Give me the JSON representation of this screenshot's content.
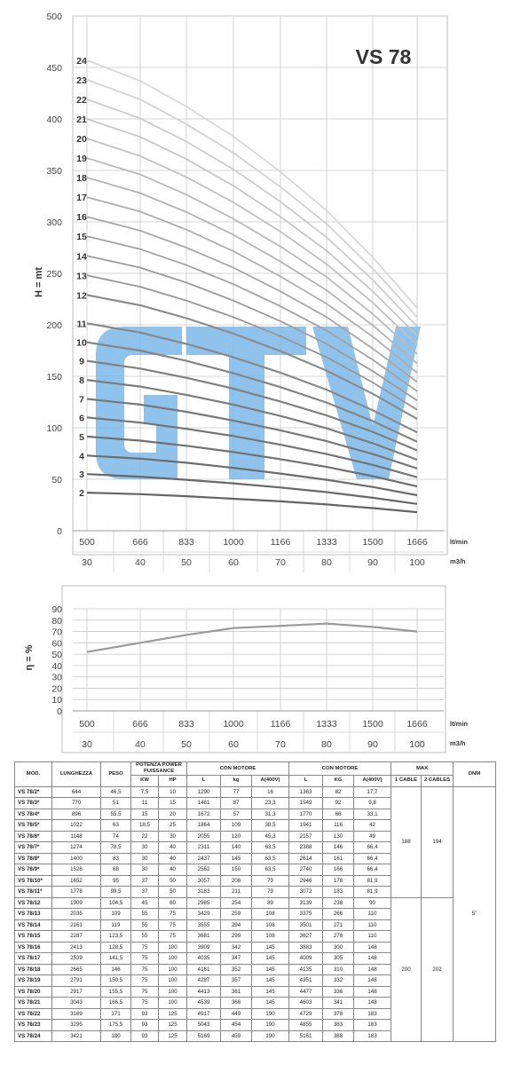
{
  "chart_data": [
    {
      "type": "line",
      "title": "VS 78",
      "ylabel": "H = mt",
      "x_units": [
        "lt/min",
        "m3/h"
      ],
      "x_ltmin": [
        "500",
        "666",
        "833",
        "1000",
        "1166",
        "1333",
        "1500",
        "1666"
      ],
      "x_m3h": [
        "30",
        "40",
        "50",
        "60",
        "70",
        "80",
        "90",
        "100"
      ],
      "ylim": [
        0,
        500
      ],
      "yticks": [
        "0",
        "50",
        "100",
        "150",
        "200",
        "250",
        "300",
        "350",
        "400",
        "450",
        "500"
      ],
      "grid": true,
      "x": [
        500,
        666,
        833,
        1000,
        1166,
        1333,
        1500,
        1666
      ],
      "series": [
        {
          "name": "2",
          "values": [
            37,
            35.5,
            33.5,
            31,
            28.5,
            25.5,
            22,
            18
          ]
        },
        {
          "name": "3",
          "values": [
            55,
            52.5,
            49.5,
            46,
            42,
            37.5,
            32,
            26
          ]
        },
        {
          "name": "4",
          "values": [
            73,
            70,
            66,
            61,
            55.5,
            49.5,
            42.5,
            34.5
          ]
        },
        {
          "name": "5",
          "values": [
            91.5,
            87.5,
            82.5,
            76.5,
            69.5,
            62,
            53,
            43
          ]
        },
        {
          "name": "6",
          "values": [
            110,
            105,
            99,
            92,
            83.5,
            74.5,
            64,
            52
          ]
        },
        {
          "name": "7",
          "values": [
            128,
            122.5,
            115.5,
            107,
            97.5,
            87,
            74.5,
            60.5
          ]
        },
        {
          "name": "8",
          "values": [
            146.5,
            140,
            132,
            122.5,
            111.5,
            99.5,
            85,
            69
          ]
        },
        {
          "name": "9",
          "values": [
            165,
            157.5,
            148.5,
            138,
            125.5,
            112,
            96,
            78
          ]
        },
        {
          "name": "10",
          "values": [
            183,
            175,
            165,
            153,
            139.5,
            124.5,
            106.5,
            86.5
          ]
        },
        {
          "name": "11",
          "values": [
            201.5,
            192.5,
            181.5,
            168.5,
            153.5,
            137,
            117,
            95.5
          ]
        },
        {
          "name": "12",
          "values": [
            229,
            219,
            206.5,
            191.5,
            174.5,
            155.5,
            133,
            108.5
          ]
        },
        {
          "name": "13",
          "values": [
            248,
            237,
            223.5,
            207.5,
            189,
            168.5,
            144,
            117.5
          ]
        },
        {
          "name": "14",
          "values": [
            267,
            255.5,
            241,
            223.5,
            203.5,
            181.5,
            155,
            126.5
          ]
        },
        {
          "name": "15",
          "values": [
            286,
            273.5,
            258,
            239.5,
            218,
            194.5,
            166,
            135.5
          ]
        },
        {
          "name": "16",
          "values": [
            305,
            291.5,
            275,
            255.5,
            232.5,
            207.5,
            177,
            144.5
          ]
        },
        {
          "name": "17",
          "values": [
            324,
            310,
            292.5,
            271.5,
            247,
            220.5,
            188.5,
            153.5
          ]
        },
        {
          "name": "18",
          "values": [
            343,
            328,
            309.5,
            287.5,
            261.5,
            233.5,
            199.5,
            162.5
          ]
        },
        {
          "name": "19",
          "values": [
            362,
            346,
            326.5,
            303,
            276,
            246.5,
            210.5,
            171.5
          ]
        },
        {
          "name": "20",
          "values": [
            381,
            364,
            343.5,
            319,
            290.5,
            259,
            221.5,
            180.5
          ]
        },
        {
          "name": "21",
          "values": [
            400,
            382.5,
            361,
            335,
            305,
            272,
            232.5,
            189.5
          ]
        },
        {
          "name": "22",
          "values": [
            419,
            400.5,
            378,
            351,
            319.5,
            285,
            243.5,
            198.5
          ]
        },
        {
          "name": "23",
          "values": [
            438,
            419,
            395,
            367,
            334,
            298,
            254.5,
            207.5
          ]
        },
        {
          "name": "24",
          "values": [
            457,
            437,
            412,
            383,
            348.5,
            311,
            265.5,
            216.5
          ]
        }
      ]
    },
    {
      "type": "line",
      "ylabel": "η = %",
      "x_units": [
        "lt/min",
        "m3/h"
      ],
      "x_ltmin": [
        "500",
        "666",
        "833",
        "1000",
        "1166",
        "1333",
        "1500",
        "1666"
      ],
      "x_m3h": [
        "30",
        "40",
        "50",
        "60",
        "70",
        "80",
        "90",
        "100"
      ],
      "ylim": [
        0,
        90
      ],
      "yticks": [
        "0",
        "10",
        "20",
        "30",
        "40",
        "50",
        "60",
        "70",
        "80",
        "90"
      ],
      "grid": true,
      "x": [
        500,
        666,
        833,
        1000,
        1166,
        1333,
        1500,
        1666
      ],
      "series": [
        {
          "values": [
            52,
            60,
            67,
            73,
            75,
            77,
            74,
            70
          ]
        }
      ]
    }
  ],
  "watermark": {
    "text": "GTV",
    "color": "#7db8e8"
  },
  "colors": {
    "grid": "#c8c8c8",
    "curve_light": "#cfcfcf",
    "curve_dark": "#6e6e6e",
    "efficiency": "#9a9a9a"
  },
  "table": {
    "headers": {
      "mod": "MOD.",
      "length": "LUNGHEZZA",
      "weight": "PESO",
      "power": "POTENZA POWER PUISSANCE",
      "power_kw": "KW",
      "power_hp": "HP",
      "motor_a": "CON MOTORE",
      "motor_a_l": "L",
      "motor_a_kg": "kg",
      "motor_a_amp": "A(400V)",
      "motor_b": "CON MOTORE",
      "motor_b_l": "L",
      "motor_b_kg": "KG",
      "motor_b_amp": "A(400V)",
      "max": "MAX",
      "max_1": "1 CABLE",
      "max_2": "2 CABLES",
      "dnm": "DNM"
    },
    "rows": [
      [
        "VS 78/2*",
        "644",
        "46,5",
        "7,5",
        "10",
        "1290",
        "77",
        "16",
        "1363",
        "82",
        "17,7"
      ],
      [
        "VS 78/3*",
        "770",
        "51",
        "11",
        "15",
        "1481",
        "87",
        "23,3",
        "1549",
        "92",
        "9,8"
      ],
      [
        "VS 78/4*",
        "896",
        "55,5",
        "15",
        "20",
        "1672",
        "57",
        "31,3",
        "1770",
        "66",
        "33,1"
      ],
      [
        "VS 78/5*",
        "1022",
        "63",
        "18,5",
        "25",
        "1864",
        "109",
        "38,5",
        "1941",
        "116",
        "42"
      ],
      [
        "VS 78/6*",
        "1148",
        "74",
        "22",
        "30",
        "2055",
        "120",
        "45,3",
        "2157",
        "130",
        "49"
      ],
      [
        "VS 78/7*",
        "1274",
        "78,5",
        "30",
        "40",
        "2311",
        "140",
        "63,5",
        "2388",
        "146",
        "66,4"
      ],
      [
        "VS 78/8*",
        "1400",
        "83",
        "30",
        "40",
        "2437",
        "145",
        "63,5",
        "2614",
        "161",
        "66,4"
      ],
      [
        "VS 78/9*",
        "1526",
        "88",
        "30",
        "40",
        "2562",
        "150",
        "63,5",
        "2740",
        "166",
        "66,4"
      ],
      [
        "VS 78/10*",
        "1652",
        "95",
        "37",
        "50",
        "3057",
        "206",
        "79",
        "2946",
        "178",
        "81,9"
      ],
      [
        "VS 78/11*",
        "1778",
        "99,5",
        "37",
        "50",
        "3183",
        "211",
        "79",
        "3072",
        "183",
        "81,9"
      ],
      [
        "VS 78/12",
        "1909",
        "104,5",
        "45",
        "60",
        "2985",
        "254",
        "89",
        "3139",
        "238",
        "90"
      ],
      [
        "VS 78/13",
        "2035",
        "109",
        "55",
        "75",
        "3429",
        "259",
        "108",
        "3375",
        "266",
        "110"
      ],
      [
        "VS 78/14",
        "2161",
        "119",
        "55",
        "75",
        "3555",
        "294",
        "108",
        "3501",
        "271",
        "110"
      ],
      [
        "VS 78/15",
        "2287",
        "123,5",
        "55",
        "75",
        "3681",
        "299",
        "108",
        "3627",
        "276",
        "110"
      ],
      [
        "VS 78/16",
        "2413",
        "128,5",
        "75",
        "100",
        "3909",
        "342",
        "145",
        "3883",
        "300",
        "148"
      ],
      [
        "VS 78/17",
        "2539",
        "141,5",
        "75",
        "100",
        "4035",
        "347",
        "145",
        "4009",
        "305",
        "148"
      ],
      [
        "VS 78/18",
        "2665",
        "146",
        "75",
        "100",
        "4161",
        "352",
        "145",
        "4135",
        "310",
        "148"
      ],
      [
        "VS 78/19",
        "2791",
        "150,5",
        "75",
        "100",
        "4287",
        "357",
        "145",
        "4351",
        "332",
        "148"
      ],
      [
        "VS 78/20",
        "2917",
        "155,5",
        "75",
        "100",
        "4413",
        "361",
        "145",
        "4477",
        "336",
        "148"
      ],
      [
        "VS 78/21",
        "3043",
        "166,5",
        "75",
        "100",
        "4539",
        "366",
        "145",
        "4603",
        "341",
        "148"
      ],
      [
        "VS 78/22",
        "3169",
        "171",
        "93",
        "125",
        "4917",
        "449",
        "190",
        "4729",
        "378",
        "183"
      ],
      [
        "VS 78/23",
        "3295",
        "175,5",
        "93",
        "125",
        "5043",
        "454",
        "190",
        "4855",
        "383",
        "183"
      ],
      [
        "VS 78/24",
        "3421",
        "180",
        "93",
        "125",
        "5169",
        "459",
        "190",
        "5161",
        "388",
        "183"
      ]
    ],
    "max_group1": {
      "one_cable": "188",
      "two_cables": "194"
    },
    "max_group2": {
      "one_cable": "200",
      "two_cables": "202"
    },
    "dnm": "5\""
  }
}
